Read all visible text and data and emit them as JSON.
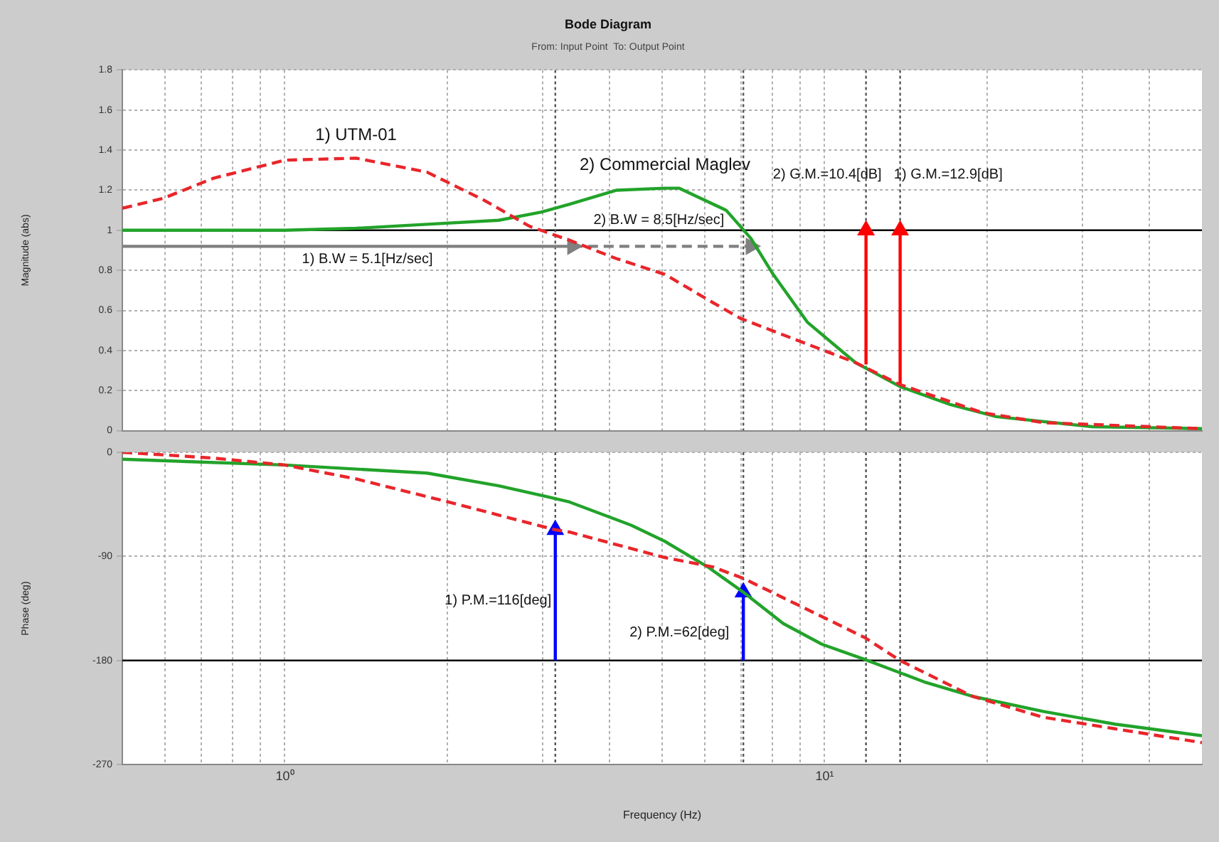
{
  "chart_data": [
    {
      "type": "line",
      "title": "Bode Diagram",
      "subtitle": "From: Input Point  To: Output Point",
      "ylabel": "Magnitude (abs)",
      "log": "x",
      "grid": true,
      "tick_labels": "y",
      "xlim": [
        0.5,
        50
      ],
      "xticks": [
        {
          "value": 0.6,
          "label": null
        },
        {
          "value": 0.7,
          "label": null
        },
        {
          "value": 0.8,
          "label": null
        },
        {
          "value": 0.9,
          "label": null
        },
        {
          "value": 1,
          "label": null
        },
        {
          "value": 2,
          "label": null
        },
        {
          "value": 3,
          "label": null
        },
        {
          "value": 4,
          "label": null
        },
        {
          "value": 5,
          "label": null
        },
        {
          "value": 6,
          "label": null
        },
        {
          "value": 7,
          "label": null
        },
        {
          "value": 8,
          "label": null
        },
        {
          "value": 9,
          "label": null
        },
        {
          "value": 10,
          "label": null
        },
        {
          "value": 20,
          "label": null
        },
        {
          "value": 30,
          "label": null
        },
        {
          "value": 40,
          "label": null
        }
      ],
      "ylim": [
        0,
        1.8
      ],
      "yticks": [
        0,
        0.2,
        0.4,
        0.6,
        0.8,
        1,
        1.2,
        1.4,
        1.6,
        1.8
      ],
      "series": [
        {
          "name": "1) UTM-01",
          "color": "#e8262b",
          "line_style": "dashed",
          "marker": "none",
          "x": [
            0.5,
            0.596,
            0.738,
            1,
            1.355,
            1.835,
            2.34,
            2.84,
            3.37,
            4.1,
            5.06,
            6.2,
            6.99,
            8.92,
            11.4,
            13.8,
            19.6,
            25.4,
            50
          ],
          "values": [
            1.11,
            1.16,
            1.26,
            1.35,
            1.36,
            1.29,
            1.15,
            1.02,
            0.95,
            0.86,
            0.78,
            0.64,
            0.56,
            0.45,
            0.34,
            0.23,
            0.09,
            0.04,
            0.01
          ]
        },
        {
          "name": "2) Commercial Maglev",
          "color": "#22a32a",
          "line_style": "solid",
          "marker": "none",
          "x": [
            0.5,
            1,
            1.355,
            1.835,
            2.49,
            2.98,
            3.37,
            4.12,
            5.06,
            5.38,
            6.57,
            7.3,
            8.03,
            9.3,
            11.4,
            13.8,
            17.1,
            20.8,
            31.3,
            50
          ],
          "values": [
            1.0,
            1.0,
            1.01,
            1.03,
            1.05,
            1.09,
            1.13,
            1.2,
            1.21,
            1.21,
            1.1,
            0.96,
            0.78,
            0.54,
            0.34,
            0.22,
            0.13,
            0.07,
            0.02,
            0.01
          ]
        },
        {
          "type": "line",
          "color": "#808080",
          "line_style": "solid",
          "marker": "triangle",
          "x": [
            0.5,
            3.41
          ],
          "values": [
            0.92,
            0.92
          ]
        },
        {
          "type": "line",
          "color": "#808080",
          "line_style": "dashed",
          "marker": "triangle",
          "x": [
            3.41,
            7.3
          ],
          "values": [
            0.92,
            0.92
          ]
        },
        {
          "type": "line",
          "color": "#ff0000",
          "line_style": "solid",
          "marker": "triangle",
          "x": [
            11.93,
            11.93
          ],
          "values": [
            0.33,
            1
          ]
        },
        {
          "type": "line",
          "color": "#ff0000",
          "line_style": "solid",
          "marker": "triangle",
          "x": [
            13.8,
            13.8
          ],
          "values": [
            0.23,
            1
          ]
        }
      ],
      "ref_lines": [
        {
          "axis": "y",
          "value": 1,
          "color": "#000000",
          "line_style": "solid"
        },
        {
          "axis": "x",
          "value": 3.17,
          "color": "#555555",
          "line_style": "dotted"
        },
        {
          "axis": "x",
          "value": 7.07,
          "color": "#555555",
          "line_style": "dotted"
        },
        {
          "axis": "x",
          "value": 11.93,
          "color": "#555555",
          "line_style": "dotted"
        },
        {
          "axis": "x",
          "value": 13.8,
          "color": "#555555",
          "line_style": "dotted"
        }
      ],
      "annotations": [
        "1) B.W = 5.1[Hz/sec]",
        "2) B.W = 8.5[Hz/sec]",
        "2) G.M.=10.4[dB]",
        "1) G.M.=12.9[dB]"
      ]
    },
    {
      "type": "line",
      "ylabel": "Phase (deg)",
      "xlabel": "Frequency (Hz)",
      "log": "x",
      "grid": true,
      "xlim": [
        0.5,
        50
      ],
      "xticks": [
        {
          "value": 0.6,
          "label": null
        },
        {
          "value": 0.7,
          "label": null
        },
        {
          "value": 0.8,
          "label": null
        },
        {
          "value": 0.9,
          "label": null
        },
        {
          "value": 1,
          "label": "10⁰"
        },
        {
          "value": 2,
          "label": null
        },
        {
          "value": 3,
          "label": null
        },
        {
          "value": 4,
          "label": null
        },
        {
          "value": 5,
          "label": null
        },
        {
          "value": 6,
          "label": null
        },
        {
          "value": 7,
          "label": null
        },
        {
          "value": 8,
          "label": null
        },
        {
          "value": 9,
          "label": null
        },
        {
          "value": 10,
          "label": "10¹"
        },
        {
          "value": 20,
          "label": null
        },
        {
          "value": 30,
          "label": null
        },
        {
          "value": 40,
          "label": null
        }
      ],
      "ylim": [
        -270,
        0
      ],
      "yticks": [
        -270,
        -180,
        -90,
        0
      ],
      "series": [
        {
          "color": "#e8262b",
          "line_style": "dashed",
          "marker": "none",
          "x": [
            0.5,
            0.738,
            1,
            1.355,
            2.01,
            3.17,
            3.37,
            5.06,
            6.2,
            7.07,
            9.3,
            11.85,
            13.8,
            18.8,
            25.4,
            34.5,
            50
          ],
          "values": [
            0,
            -5,
            -11,
            -23,
            -43,
            -67,
            -69,
            -91,
            -99,
            -109,
            -136,
            -160,
            -180,
            -211,
            -229,
            -239,
            -251
          ]
        },
        {
          "color": "#22a32a",
          "line_style": "solid",
          "marker": "none",
          "x": [
            0.5,
            1,
            1.835,
            2.49,
            3.17,
            3.37,
            4.38,
            5.06,
            6.07,
            7.07,
            8.38,
            9.89,
            11.85,
            15.4,
            18.8,
            25.4,
            34.5,
            50
          ],
          "values": [
            -6,
            -11,
            -18,
            -29,
            -40,
            -43,
            -63,
            -77,
            -99,
            -121,
            -148,
            -166,
            -179,
            -199,
            -211,
            -224,
            -235,
            -245
          ]
        },
        {
          "type": "line",
          "color": "#0000ff",
          "line_style": "solid",
          "marker": "triangle",
          "x": [
            3.17,
            3.17
          ],
          "values": [
            -180,
            -67
          ]
        },
        {
          "type": "line",
          "color": "#0000ff",
          "line_style": "solid",
          "marker": "triangle",
          "x": [
            7.07,
            7.07
          ],
          "values": [
            -180,
            -121
          ]
        }
      ],
      "ref_lines": [
        {
          "axis": "y",
          "value": -180,
          "color": "#000000",
          "line_style": "solid"
        },
        {
          "axis": "x",
          "value": 3.17,
          "color": "#555555",
          "line_style": "dotted"
        },
        {
          "axis": "x",
          "value": 7.07,
          "color": "#555555",
          "line_style": "dotted"
        },
        {
          "axis": "x",
          "value": 11.93,
          "color": "#555555",
          "line_style": "dotted"
        },
        {
          "axis": "x",
          "value": 13.8,
          "color": "#555555",
          "line_style": "dotted"
        }
      ],
      "annotations": [
        "1) P.M.=116[deg]",
        "2) P.M.=62[deg]"
      ]
    }
  ]
}
